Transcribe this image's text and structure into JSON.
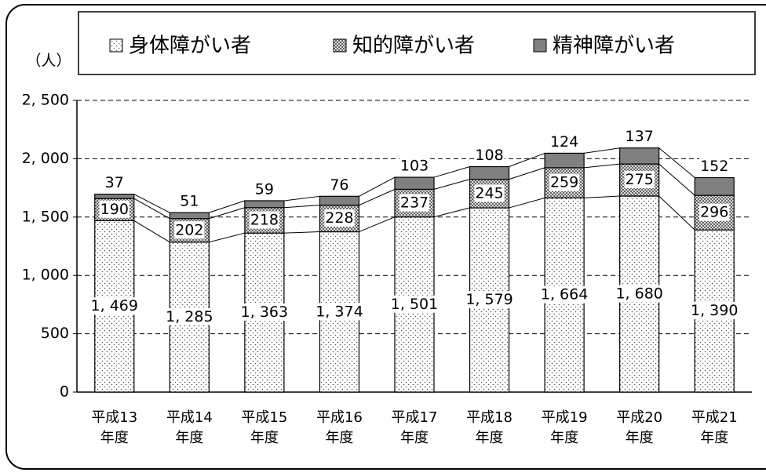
{
  "chart_data": {
    "type": "stacked_bar",
    "y_label": "（人）",
    "categories": [
      "平成13\n年度",
      "平成14\n年度",
      "平成15\n年度",
      "平成16\n年度",
      "平成17\n年度",
      "平成18\n年度",
      "平成19\n年度",
      "平成20\n年度",
      "平成21\n年度"
    ],
    "series": [
      {
        "name": "身体障がい者",
        "color": "#ffffff",
        "pattern": "dots",
        "values": [
          1469,
          1285,
          1363,
          1374,
          1501,
          1579,
          1664,
          1680,
          1390
        ],
        "value_labels": [
          "1, 469",
          "1, 285",
          "1, 363",
          "1, 374",
          "1, 501",
          "1, 579",
          "1, 664",
          "1, 680",
          "1, 390"
        ]
      },
      {
        "name": "知的障がい者",
        "color": "#ffffff",
        "pattern": "cross",
        "values": [
          190,
          202,
          218,
          228,
          237,
          245,
          259,
          275,
          296
        ]
      },
      {
        "name": "精神障がい者",
        "color": "#808080",
        "pattern": "solid",
        "values": [
          37,
          51,
          59,
          76,
          103,
          108,
          124,
          137,
          152
        ]
      }
    ],
    "ylim": [
      0,
      2500
    ],
    "yticks": [
      0,
      500,
      {
        "value": 1000,
        "label": "1, 000"
      },
      {
        "value": 1500,
        "label": "1, 500"
      },
      {
        "value": 2000,
        "label": "2, 000"
      },
      {
        "value": 2500,
        "label": "2, 500"
      }
    ],
    "grid": true,
    "legend": "top"
  }
}
